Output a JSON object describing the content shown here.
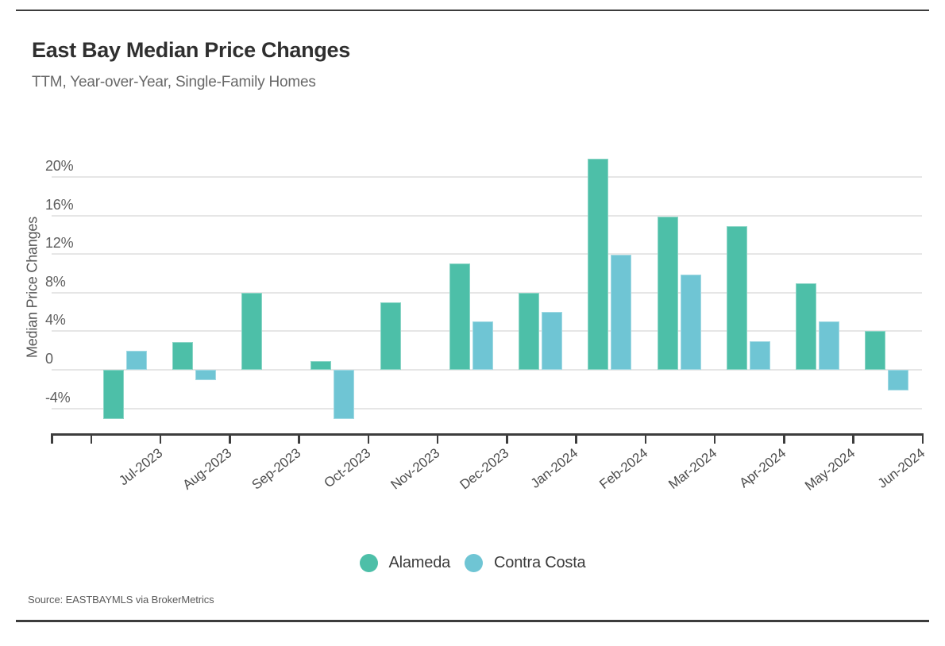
{
  "header": {
    "title": "East Bay Median Price Changes",
    "subtitle": "TTM, Year-over-Year, Single-Family Homes"
  },
  "footer": {
    "source": "Source: EASTBAYMLS via BrokerMetrics"
  },
  "chart_data": {
    "type": "bar",
    "title": "East Bay Median Price Changes",
    "subtitle": "TTM, Year-over-Year, Single-Family Homes",
    "xlabel": "",
    "ylabel": "Median Price Changes",
    "categories": [
      "Jul-2023",
      "Aug-2023",
      "Sep-2023",
      "Oct-2023",
      "Nov-2023",
      "Dec-2023",
      "Jan-2024",
      "Feb-2024",
      "Mar-2024",
      "Apr-2024",
      "May-2024",
      "Jun-2024"
    ],
    "series": [
      {
        "name": "Alameda",
        "color": "#4DBFA8",
        "values": [
          -5.1,
          2.9,
          8.0,
          0.9,
          7.0,
          11.0,
          8.0,
          21.9,
          15.9,
          14.9,
          9.0,
          4.0
        ]
      },
      {
        "name": "Contra Costa",
        "color": "#6FC5D4",
        "values": [
          2.0,
          -1.1,
          null,
          -5.1,
          null,
          5.0,
          6.0,
          11.9,
          9.9,
          3.0,
          5.0,
          -2.1
        ]
      }
    ],
    "y_ticks": [
      {
        "value": 20,
        "label": "20%"
      },
      {
        "value": 16,
        "label": "16%"
      },
      {
        "value": 12,
        "label": "12%"
      },
      {
        "value": 8,
        "label": "8%"
      },
      {
        "value": 4,
        "label": "4%"
      },
      {
        "value": 0,
        "label": "0"
      },
      {
        "value": -4,
        "label": "-4%"
      }
    ],
    "ylim": [
      -6.7,
      23
    ],
    "grid": true,
    "legend_position": "bottom-center",
    "x_tick_rotation_deg": -38,
    "source": "Source: EASTBAYMLS via BrokerMetrics"
  }
}
